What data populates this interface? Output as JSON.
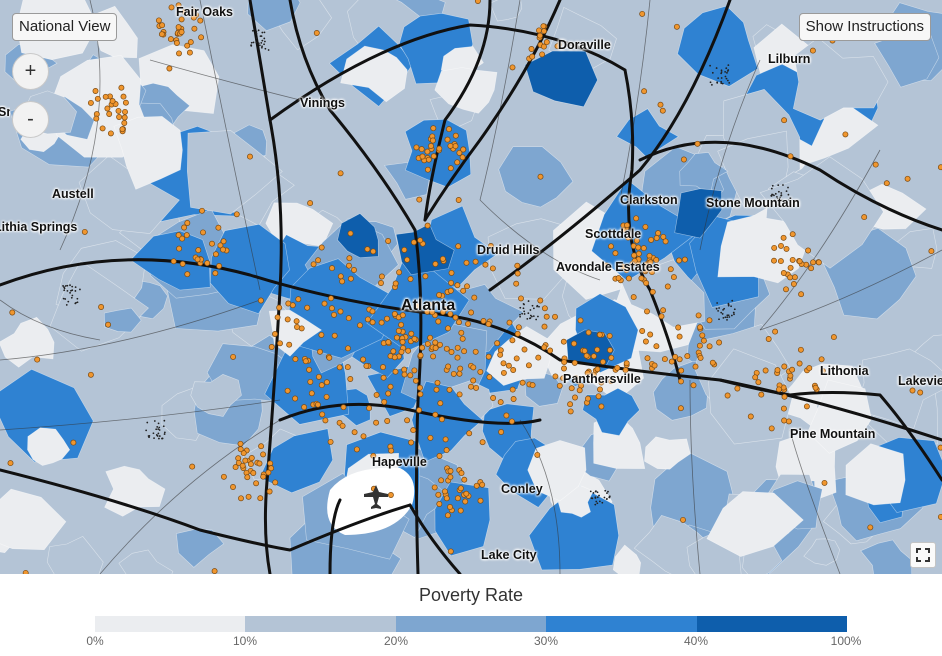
{
  "controls": {
    "national_view_label": "National View",
    "show_instructions_label": "Show Instructions",
    "zoom_in_label": "+",
    "zoom_out_label": "-"
  },
  "places": [
    {
      "name": "Fair Oaks"
    },
    {
      "name": "Doraville"
    },
    {
      "name": "Lilburn"
    },
    {
      "name": "Vinings"
    },
    {
      "name": "Austell"
    },
    {
      "name": "Lithia Springs"
    },
    {
      "name": "Clarkston"
    },
    {
      "name": "Stone Mountain"
    },
    {
      "name": "Scottdale"
    },
    {
      "name": "Druid Hills"
    },
    {
      "name": "Avondale Estates"
    },
    {
      "name": "Atlanta"
    },
    {
      "name": "Panthersville"
    },
    {
      "name": "Lithonia"
    },
    {
      "name": "Lakeview"
    },
    {
      "name": "Pine Mountain"
    },
    {
      "name": "Hapeville"
    },
    {
      "name": "Conley"
    },
    {
      "name": "Lake City"
    },
    {
      "name": "Smyrna"
    }
  ],
  "legend": {
    "title": "Poverty Rate",
    "bins": [
      {
        "label": "0%",
        "color": "#ebedf0"
      },
      {
        "label": "10%",
        "color": "#b4c4d6"
      },
      {
        "label": "20%",
        "color": "#7ea6d0"
      },
      {
        "label": "30%",
        "color": "#2f82d2"
      },
      {
        "label": "40%",
        "color": "#0e5eac"
      }
    ],
    "end_label": "100%"
  },
  "colors": {
    "dot_fill": "#f0962e",
    "dot_stroke": "#7a4a13",
    "highway": "#111111",
    "roads": "#333333"
  },
  "icons": {
    "airport": "airplane-icon",
    "fullscreen": "fullscreen-icon"
  }
}
